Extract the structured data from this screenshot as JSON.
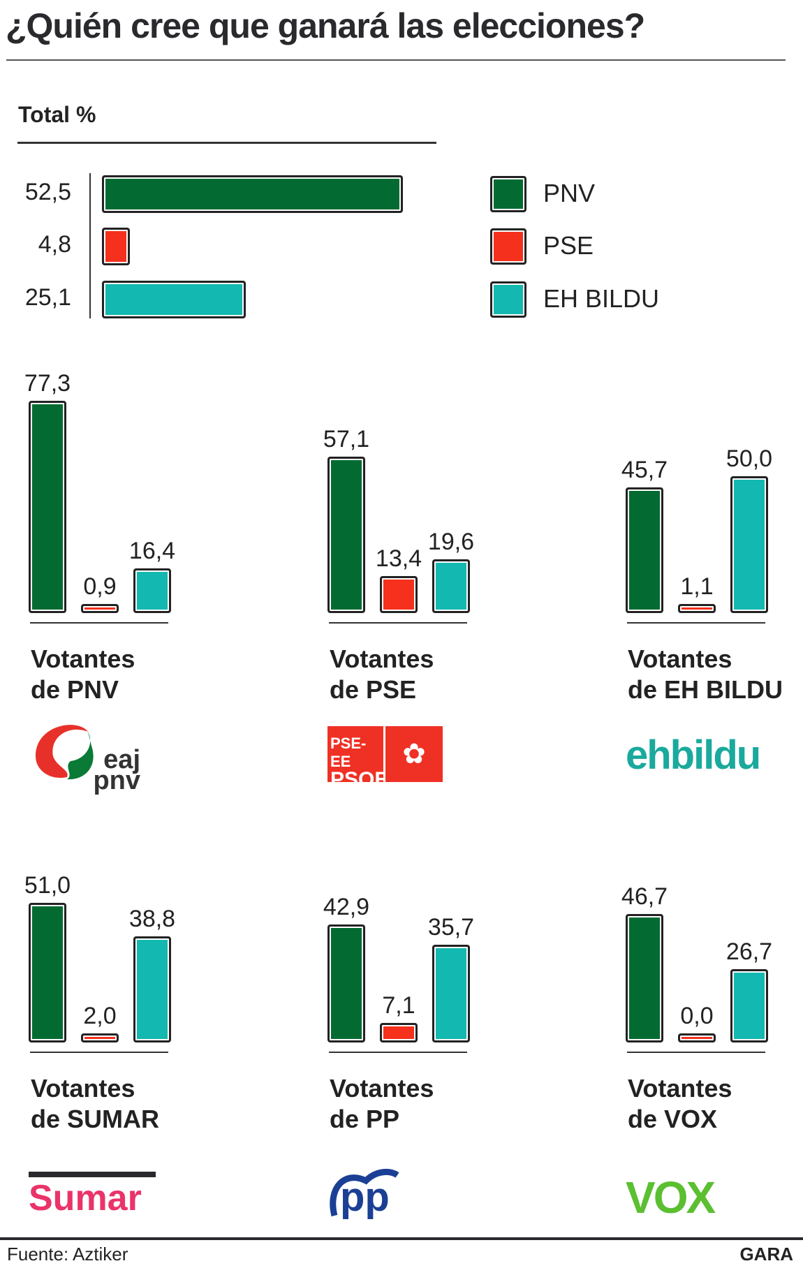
{
  "title": "¿Quién cree que ganará las elecciones?",
  "colors": {
    "PNV": "#036b32",
    "PSE": "#f5301c",
    "EH BILDU": "#13b8b0"
  },
  "chart_data": [
    {
      "type": "bar",
      "orientation": "horizontal",
      "title": "Total %",
      "categories": [
        "PNV",
        "PSE",
        "EH BILDU"
      ],
      "values": [
        52.5,
        4.8,
        25.1
      ],
      "labels": [
        "52,5",
        "4,8",
        "25,1"
      ],
      "legend": [
        "PNV",
        "PSE",
        "EH BILDU"
      ],
      "legend_placement": "right"
    },
    {
      "type": "bar",
      "title_line1": "Votantes",
      "title_line2": "de PNV",
      "categories": [
        "PNV",
        "PSE",
        "EH BILDU"
      ],
      "values": [
        77.3,
        0.9,
        16.4
      ],
      "labels": [
        "77,3",
        "0,9",
        "16,4"
      ],
      "logo": "eaj pnv"
    },
    {
      "type": "bar",
      "title_line1": "Votantes",
      "title_line2": "de PSE",
      "categories": [
        "PNV",
        "PSE",
        "EH BILDU"
      ],
      "values": [
        57.1,
        13.4,
        19.6
      ],
      "labels": [
        "57,1",
        "13,4",
        "19,6"
      ],
      "logo": "PSE-EE PSOE"
    },
    {
      "type": "bar",
      "title_line1": "Votantes",
      "title_line2": "de EH BILDU",
      "categories": [
        "PNV",
        "PSE",
        "EH BILDU"
      ],
      "values": [
        45.7,
        1.1,
        50.0
      ],
      "labels": [
        "45,7",
        "1,1",
        "50,0"
      ],
      "logo": "ehbildu"
    },
    {
      "type": "bar",
      "title_line1": "Votantes",
      "title_line2": "de SUMAR",
      "categories": [
        "PNV",
        "PSE",
        "EH BILDU"
      ],
      "values": [
        51.0,
        2.0,
        38.8
      ],
      "labels": [
        "51,0",
        "2,0",
        "38,8"
      ],
      "logo": "Sumar"
    },
    {
      "type": "bar",
      "title_line1": "Votantes",
      "title_line2": "de PP",
      "categories": [
        "PNV",
        "PSE",
        "EH BILDU"
      ],
      "values": [
        42.9,
        7.1,
        35.7
      ],
      "labels": [
        "42,9",
        "7,1",
        "35,7"
      ],
      "logo": "pp"
    },
    {
      "type": "bar",
      "title_line1": "Votantes",
      "title_line2": "de VOX",
      "categories": [
        "PNV",
        "PSE",
        "EH BILDU"
      ],
      "values": [
        46.7,
        0.0,
        26.7
      ],
      "labels": [
        "46,7",
        "0,0",
        "26,7"
      ],
      "logo": "VOX"
    }
  ],
  "footer": {
    "source": "Fuente: Aztiker",
    "brand": "GARA"
  }
}
